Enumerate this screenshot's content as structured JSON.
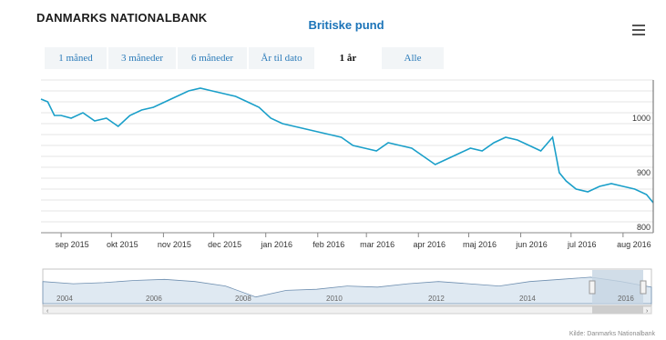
{
  "header": {
    "logo_text": "DANMARKS NATIONALBANK",
    "menu_icon": "hamburger-icon"
  },
  "chart_title": "Britiske pund",
  "range_tabs": [
    {
      "label": "1 måned",
      "active": false
    },
    {
      "label": "3 måneder",
      "active": false
    },
    {
      "label": "6 måneder",
      "active": false
    },
    {
      "label": "År til dato",
      "active": false
    },
    {
      "label": "1 år",
      "active": true
    },
    {
      "label": "Alle",
      "active": false
    }
  ],
  "credit": "Kilde: Danmarks Nationalbank",
  "colors": {
    "line": "#1a9fc9",
    "title": "#1a73b8",
    "navigator_fill": "#dfe9f2",
    "navigator_window": "#c6d4e2"
  },
  "chart_data": {
    "type": "line",
    "title": "Britiske pund",
    "xlabel": "",
    "ylabel": "",
    "ylim": [
      800,
      1080
    ],
    "yticks": [
      800,
      900,
      1000
    ],
    "grid": true,
    "xticks": [
      "sep 2015",
      "okt 2015",
      "nov 2015",
      "dec 2015",
      "jan 2016",
      "feb 2016",
      "mar 2016",
      "apr 2016",
      "maj 2016",
      "jun 2016",
      "jul 2016",
      "aug 2016"
    ],
    "series": [
      {
        "x": [
          "2015-08-20",
          "2015-08-24",
          "2015-08-28",
          "2015-09-01",
          "2015-09-07",
          "2015-09-14",
          "2015-09-21",
          "2015-09-28",
          "2015-10-05",
          "2015-10-12",
          "2015-10-19",
          "2015-10-26",
          "2015-11-02",
          "2015-11-09",
          "2015-11-16",
          "2015-11-23",
          "2015-11-30",
          "2015-12-07",
          "2015-12-14",
          "2015-12-21",
          "2015-12-28",
          "2016-01-04",
          "2016-01-11",
          "2016-01-18",
          "2016-01-25",
          "2016-02-01",
          "2016-02-08",
          "2016-02-15",
          "2016-02-22",
          "2016-02-29",
          "2016-03-07",
          "2016-03-14",
          "2016-03-21",
          "2016-03-28",
          "2016-04-04",
          "2016-04-11",
          "2016-04-18",
          "2016-04-25",
          "2016-05-02",
          "2016-05-09",
          "2016-05-16",
          "2016-05-23",
          "2016-05-30",
          "2016-06-06",
          "2016-06-13",
          "2016-06-20",
          "2016-06-24",
          "2016-06-28",
          "2016-07-04",
          "2016-07-11",
          "2016-07-18",
          "2016-07-25",
          "2016-08-01",
          "2016-08-08",
          "2016-08-15",
          "2016-08-19"
        ],
        "y": [
          1045,
          1040,
          1015,
          1015,
          1010,
          1020,
          1005,
          1010,
          995,
          1015,
          1025,
          1030,
          1040,
          1050,
          1060,
          1065,
          1060,
          1055,
          1050,
          1040,
          1030,
          1010,
          1000,
          995,
          990,
          985,
          980,
          975,
          960,
          955,
          950,
          965,
          960,
          955,
          940,
          925,
          935,
          945,
          955,
          950,
          965,
          975,
          970,
          960,
          950,
          975,
          910,
          895,
          880,
          875,
          885,
          890,
          885,
          880,
          870,
          855
        ]
      }
    ],
    "navigator": {
      "xticks": [
        "2004",
        "2006",
        "2008",
        "2010",
        "2012",
        "2014",
        "2016"
      ],
      "series_y": [
        880,
        870,
        875,
        885,
        890,
        880,
        860,
        810,
        840,
        845,
        860,
        855,
        870,
        880,
        870,
        860,
        880,
        890,
        900,
        880,
        855
      ],
      "selected_range": [
        "2015-08-20",
        "2016-08-19"
      ]
    }
  }
}
